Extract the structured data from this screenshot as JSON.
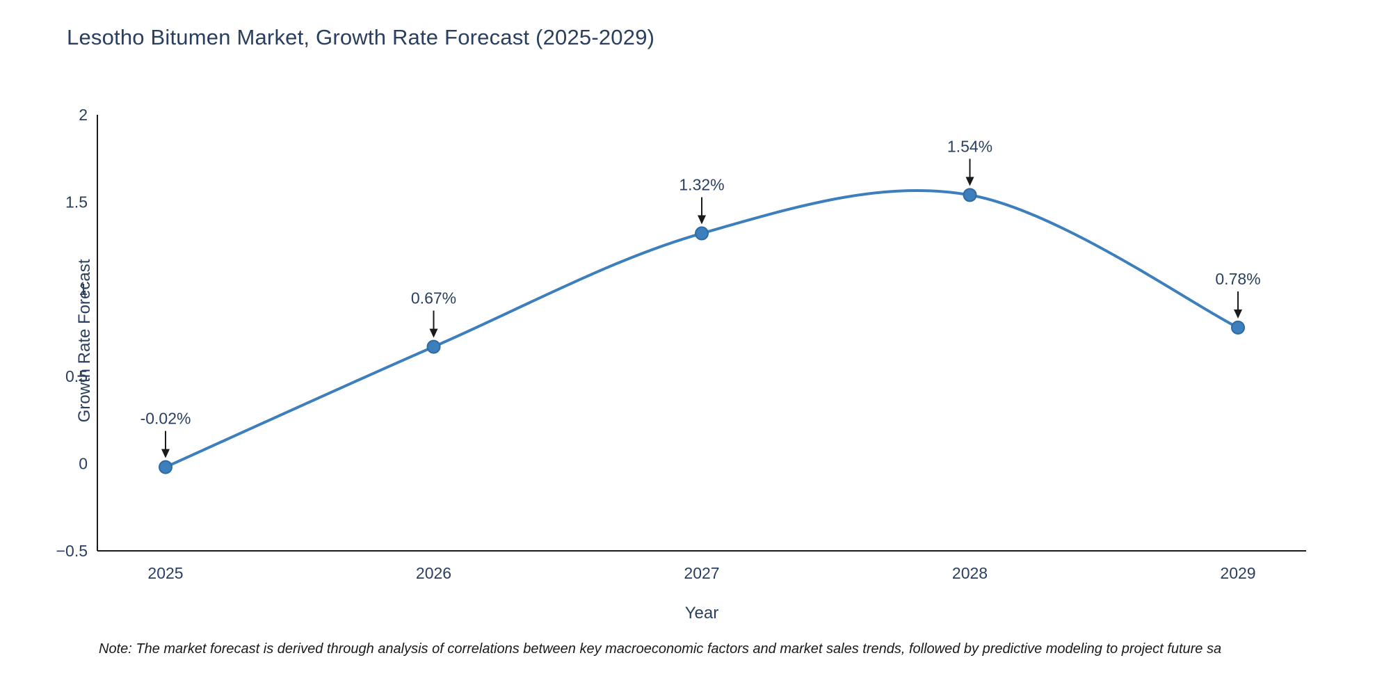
{
  "footnote": "Note: The market forecast is derived through analysis of correlations between key macroeconomic factors and market sales trends, followed by predictive modeling to project future sa",
  "chart_data": {
    "type": "line",
    "title": "Lesotho Bitumen Market, Growth Rate Forecast (2025-2029)",
    "xlabel": "Year",
    "ylabel": "Growth Rate Forecast",
    "x": [
      "2025",
      "2026",
      "2027",
      "2028",
      "2029"
    ],
    "values": [
      -0.02,
      0.67,
      1.32,
      1.54,
      0.78
    ],
    "point_labels": [
      "-0.02%",
      "0.67%",
      "1.32%",
      "1.54%",
      "0.78%"
    ],
    "ylim": [
      -0.5,
      2
    ],
    "yticks": [
      2,
      1.5,
      1,
      0.5,
      0,
      -0.5
    ],
    "ytick_labels": [
      "2",
      "1.5",
      "1",
      "0.5",
      "0",
      "−0.5"
    ],
    "grid": false,
    "legend": "none",
    "line_shape": "spline",
    "line_color": "#3d7ebd",
    "marker_edge_color": "#2f6ba3",
    "axis_color": "#1a1a1a",
    "text_color": "#2a3f5f"
  }
}
